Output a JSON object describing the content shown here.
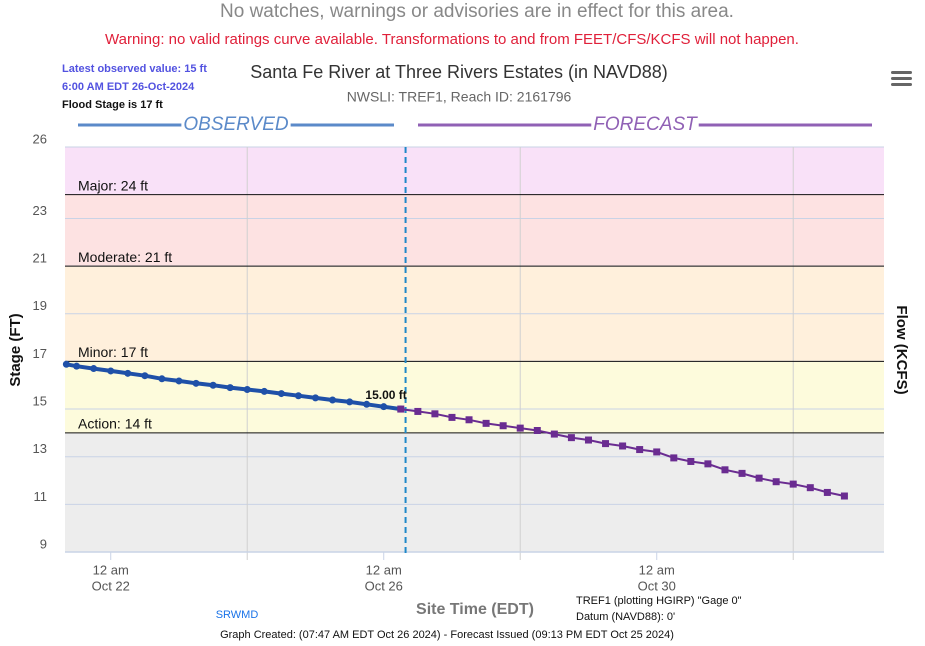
{
  "page": {
    "notice": "No watches, warnings or advisories are in effect for this area.",
    "warning": "Warning: no valid ratings curve available. Transformations to and from FEET/CFS/KCFS will not happen.",
    "info": [
      "Latest observed value: 15 ft",
      "6:00 AM EDT 26-Oct-2024",
      "Flood Stage is 17 ft"
    ],
    "source": "SRWMD",
    "gage": [
      "TREF1 (plotting HGIRP) \"Gage 0\"",
      "Datum (NAVD88): 0'"
    ],
    "footer": "Graph Created: (07:47 AM EDT Oct 26 2024) - Forecast Issued (09:13 PM EDT Oct 25 2024)"
  },
  "chart_data": {
    "type": "line",
    "title": "Santa Fe River at Three Rivers Estates (in NAVD88)",
    "subtitle": "NWSLI: TREF1, Reach ID: 2161796",
    "y_label": "Stage (FT)",
    "y2_label": "Flow (KCFS)",
    "x_label": "Site Time (EDT)",
    "xlim": [
      21.33,
      33.33
    ],
    "xticks": [
      {
        "value": 22,
        "label": [
          "12 am",
          "Oct 22"
        ]
      },
      {
        "value": 24,
        "label": null
      },
      {
        "value": 26,
        "label": [
          "12 am",
          "Oct 26"
        ]
      },
      {
        "value": 28,
        "label": null
      },
      {
        "value": 30,
        "label": [
          "12 am",
          "Oct 30"
        ]
      },
      {
        "value": 32,
        "label": null
      }
    ],
    "ylim": [
      9,
      26
    ],
    "yticks": [
      9,
      11,
      13,
      15,
      17,
      19,
      21,
      23,
      26
    ],
    "grid": true,
    "now": 26.32,
    "below_color": "#ededed",
    "flood_stages": [
      {
        "label": "Action: 14 ft",
        "value": 14,
        "color": "#fdfbdc"
      },
      {
        "label": "Minor: 17 ft",
        "value": 17,
        "color": "#fff0dc"
      },
      {
        "label": "Moderate: 21 ft",
        "value": 21,
        "color": "#fde2e2"
      },
      {
        "label": "Major: 24 ft",
        "value": 24,
        "color": "#f9e1f8"
      }
    ],
    "point_label": {
      "value": 15,
      "label": "15.00 ft"
    },
    "series": [
      {
        "name": "OBSERVED",
        "color": "#1f50a8",
        "header_color": "#5b8ac9",
        "marker": "circle",
        "x": [
          21.35,
          21.5,
          21.75,
          22,
          22.25,
          22.5,
          22.75,
          23,
          23.25,
          23.5,
          23.75,
          24,
          24.25,
          24.5,
          24.75,
          25,
          25.25,
          25.5,
          25.75,
          26,
          26.25
        ],
        "values": [
          16.88,
          16.8,
          16.7,
          16.6,
          16.5,
          16.4,
          16.27,
          16.18,
          16.08,
          16.0,
          15.9,
          15.82,
          15.74,
          15.65,
          15.56,
          15.47,
          15.38,
          15.3,
          15.2,
          15.1,
          15.0
        ]
      },
      {
        "name": "FORECAST",
        "color": "#6a2c91",
        "header_color": "#9061b5",
        "marker": "square",
        "x": [
          26.25,
          26.5,
          26.75,
          27,
          27.25,
          27.5,
          27.75,
          28,
          28.25,
          28.5,
          28.75,
          29,
          29.25,
          29.5,
          29.75,
          30,
          30.25,
          30.5,
          30.75,
          31,
          31.25,
          31.5,
          31.75,
          32,
          32.25,
          32.5,
          32.75
        ],
        "values": [
          15.0,
          14.9,
          14.8,
          14.65,
          14.55,
          14.4,
          14.3,
          14.2,
          14.1,
          13.95,
          13.8,
          13.7,
          13.55,
          13.45,
          13.3,
          13.2,
          12.95,
          12.8,
          12.7,
          12.45,
          12.3,
          12.1,
          11.95,
          11.85,
          11.7,
          11.5,
          11.35
        ]
      }
    ]
  }
}
